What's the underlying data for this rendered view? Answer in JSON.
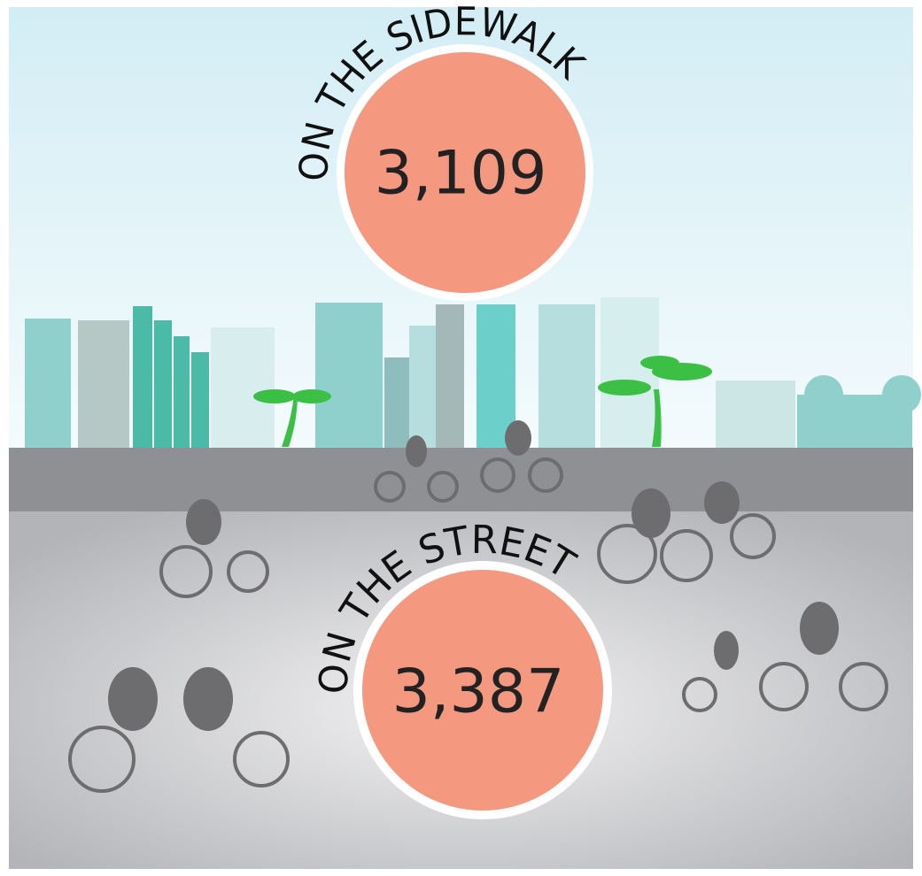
{
  "sidewalk": {
    "label": "ON THE SIDEWALK",
    "count": "3,109"
  },
  "street": {
    "label": "ON THE STREET",
    "count": "3,387"
  }
}
